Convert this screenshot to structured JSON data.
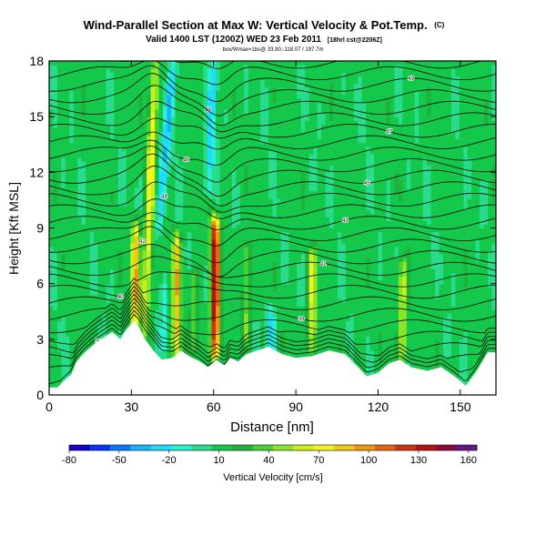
{
  "chart_data": {
    "type": "heatmap",
    "title": "Wind-Parallel Section at Max W: Vertical Velocity & Pot.Temp.",
    "title_mark": "(C)",
    "subtitle_main": "Valid 1400 LST (1200Z) WED 23 Feb 2011",
    "subtitle_note": "[18hrl cst@2206Z]",
    "subtitle_small": "box/Wmax=1bs@ 33.90,-118.07 / 197.7m",
    "xlabel": "Distance [nm]",
    "ylabel": "Height [Kft MSL]",
    "xlim": [
      0,
      163
    ],
    "ylim": [
      0,
      18
    ],
    "xticks": [
      0,
      30,
      60,
      90,
      120,
      150
    ],
    "yticks": [
      0,
      3,
      6,
      9,
      12,
      15,
      18
    ],
    "colorbar": {
      "label": "Vertical Velocity [cm/s]",
      "ticks": [
        -80,
        -50,
        -20,
        10,
        40,
        70,
        100,
        130,
        160
      ],
      "range": [
        -80,
        165
      ],
      "colors": [
        "#1400c8",
        "#0a32ff",
        "#0a78ff",
        "#14b4ff",
        "#1edcff",
        "#28f0d2",
        "#28dc8c",
        "#14c84b",
        "#1eb43c",
        "#46d232",
        "#8ce628",
        "#c8f01e",
        "#f5f51e",
        "#f5c814",
        "#f0960f",
        "#e6640f",
        "#d2320f",
        "#b4140f",
        "#8c0a3c",
        "#64148c"
      ]
    },
    "background_w": 10,
    "terrain_kft": [
      [
        0,
        0.4
      ],
      [
        3,
        0.4
      ],
      [
        5,
        0.7
      ],
      [
        8,
        1.1
      ],
      [
        10,
        1.8
      ],
      [
        13,
        2.3
      ],
      [
        17,
        2.8
      ],
      [
        20,
        3.1
      ],
      [
        23,
        3.4
      ],
      [
        26,
        3.0
      ],
      [
        28,
        3.5
      ],
      [
        31,
        4.0
      ],
      [
        33,
        3.6
      ],
      [
        35,
        3.0
      ],
      [
        38,
        2.4
      ],
      [
        41,
        1.9
      ],
      [
        45,
        2.0
      ],
      [
        48,
        2.4
      ],
      [
        51,
        2.1
      ],
      [
        55,
        1.8
      ],
      [
        58,
        1.5
      ],
      [
        61,
        1.9
      ],
      [
        64,
        1.6
      ],
      [
        66,
        2.0
      ],
      [
        69,
        1.8
      ],
      [
        72,
        2.2
      ],
      [
        76,
        2.4
      ],
      [
        80,
        2.6
      ],
      [
        85,
        2.2
      ],
      [
        90,
        2.0
      ],
      [
        96,
        2.1
      ],
      [
        102,
        2.4
      ],
      [
        108,
        2.2
      ],
      [
        112,
        1.6
      ],
      [
        116,
        1.0
      ],
      [
        120,
        1.2
      ],
      [
        124,
        1.7
      ],
      [
        128,
        1.9
      ],
      [
        132,
        1.5
      ],
      [
        138,
        1.3
      ],
      [
        143,
        1.5
      ],
      [
        148,
        1.0
      ],
      [
        152,
        0.5
      ],
      [
        156,
        1.3
      ],
      [
        160,
        2.3
      ],
      [
        163,
        2.3
      ]
    ],
    "w_features": [
      {
        "x": 35,
        "z0": 3.5,
        "z1": 18,
        "w": 75,
        "lean": 0.25
      },
      {
        "x": 31.5,
        "z0": 4,
        "z1": 9,
        "w": 95,
        "lean": 0
      },
      {
        "x": 46.5,
        "z0": 2.2,
        "z1": 8.5,
        "w": 85,
        "lean": 0
      },
      {
        "x": 60.5,
        "z0": 2.2,
        "z1": 9.3,
        "w": 145,
        "lean": 0
      },
      {
        "x": 96,
        "z0": 2.5,
        "z1": 7.5,
        "w": 70,
        "lean": 0
      },
      {
        "x": 129,
        "z0": 2.0,
        "z1": 7.0,
        "w": 65,
        "lean": 0
      },
      {
        "x": 72,
        "z0": 3.0,
        "z1": 8.0,
        "w": 45,
        "lean": 0
      },
      {
        "x": 53,
        "z0": 2.5,
        "z1": 6.5,
        "w": 40,
        "lean": 0
      },
      {
        "x": 40,
        "z0": 9,
        "z1": 18,
        "w": -30,
        "lean": 0.6
      },
      {
        "x": 58,
        "z0": 11,
        "z1": 18,
        "w": -25,
        "lean": 0.3
      },
      {
        "x": 81,
        "z0": 2.5,
        "z1": 4.5,
        "w": -25,
        "lean": 0
      },
      {
        "x": 42,
        "z0": 2.5,
        "z1": 6,
        "w": -10,
        "lean": 0
      }
    ],
    "theta_isentropes": {
      "labels": [
        "36",
        "37",
        "38",
        "39",
        "40",
        "41",
        "42",
        "43",
        "44",
        "45",
        "46",
        "47",
        "48",
        "49"
      ],
      "count": 30
    }
  }
}
